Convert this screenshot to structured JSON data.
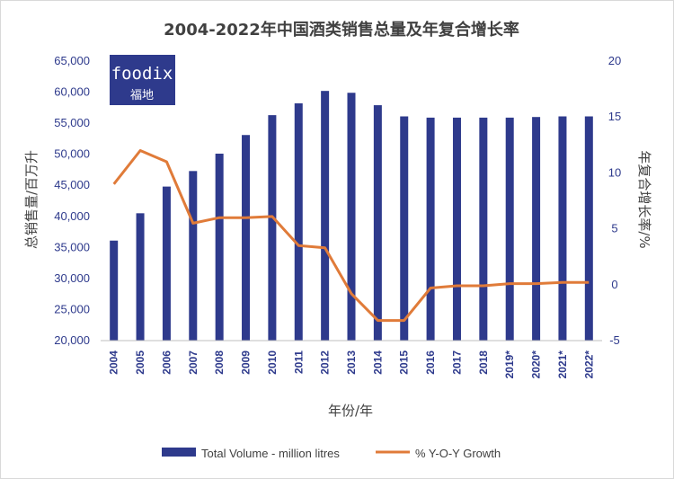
{
  "colors": {
    "bar": "#2e3a8c",
    "line": "#e07b39",
    "logo_bg": "#2e3a8c"
  },
  "logo": {
    "name": "foodix",
    "sub": "福地"
  },
  "chart_data": {
    "type": "bar+line",
    "title": "2004-2022年中国酒类销售总量及年复合增长率",
    "xlabel": "年份/年",
    "ylabel_left": "总销售量/百万升",
    "ylabel_right": "年复合增长率/%",
    "categories": [
      "2004",
      "2005",
      "2006",
      "2007",
      "2008",
      "2009",
      "2010",
      "2011",
      "2012",
      "2013",
      "2014",
      "2015",
      "2016",
      "2017",
      "2018",
      "2019*",
      "2020*",
      "2021*",
      "2022*"
    ],
    "ylim_left": [
      20000,
      65000
    ],
    "yticks_left": [
      "20,000",
      "25,000",
      "30,000",
      "35,000",
      "40,000",
      "45,000",
      "50,000",
      "55,000",
      "60,000",
      "65,000"
    ],
    "ylim_right": [
      -5,
      20
    ],
    "yticks_right": [
      "-5",
      "0",
      "5",
      "10",
      "15",
      "20"
    ],
    "series": [
      {
        "name": "Total Volume - million litres",
        "type": "bar",
        "axis": "left",
        "values": [
          36100,
          40500,
          44800,
          47300,
          50100,
          53100,
          56300,
          58200,
          60200,
          59900,
          57900,
          56100,
          55900,
          55900,
          55900,
          55900,
          56000,
          56100,
          56100
        ]
      },
      {
        "name": "% Y-O-Y Growth",
        "type": "line",
        "axis": "right",
        "values": [
          9.0,
          12.0,
          11.0,
          5.5,
          6.0,
          6.0,
          6.1,
          3.5,
          3.3,
          -0.8,
          -3.2,
          -3.2,
          -0.3,
          -0.1,
          -0.1,
          0.1,
          0.1,
          0.2,
          0.2
        ]
      }
    ],
    "legend_position": "bottom",
    "grid": false
  }
}
